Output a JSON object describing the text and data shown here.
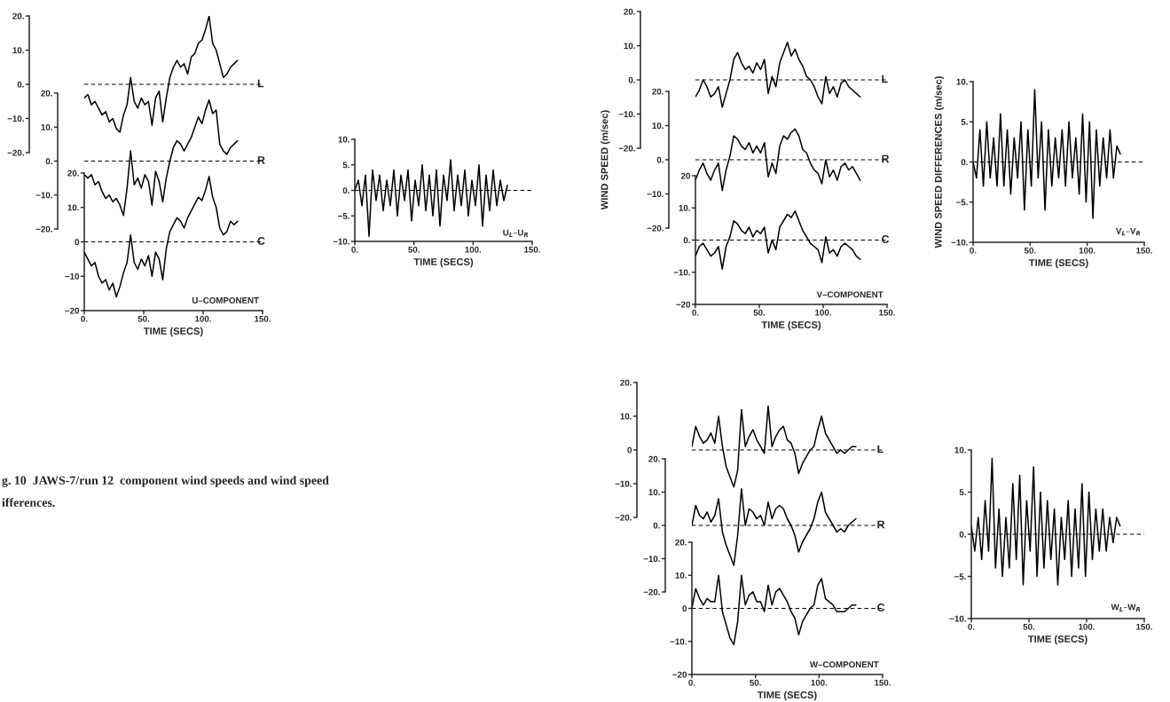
{
  "chart_data": [
    {
      "type": "line",
      "x": [
        0,
        3,
        6,
        9,
        12,
        15,
        18,
        21,
        24,
        27,
        30,
        33,
        36,
        39,
        42,
        45,
        48,
        51,
        54,
        57,
        60,
        63,
        66,
        69,
        72,
        75,
        78,
        81,
        84,
        87,
        90,
        93,
        96,
        99,
        102,
        105,
        108,
        111,
        114,
        117,
        120,
        123,
        126,
        129
      ],
      "xlim": [
        0,
        150
      ],
      "ylim": [
        -20,
        20
      ],
      "yticks": [
        {
          "value": 20,
          "label": "20."
        },
        {
          "value": 10,
          "label": "10."
        },
        {
          "value": 0,
          "label": "0."
        },
        {
          "value": -10,
          "label": "−10."
        },
        {
          "value": -20,
          "label": "−20."
        }
      ],
      "tick_labels": "y",
      "ref_lines": [
        {
          "axis": "y",
          "value": 0,
          "label": "L",
          "line_style": "dashed"
        }
      ],
      "series": [
        {
          "color": "#000000",
          "values": [
            -4,
            -3,
            -6,
            -5,
            -7,
            -9,
            -8,
            -11,
            -10,
            -13,
            -14,
            -9,
            -6,
            2,
            -5,
            -7,
            -4,
            -6,
            -5,
            -12,
            -4,
            -2,
            -11,
            -4,
            2,
            5,
            7,
            5,
            6,
            3,
            8,
            9,
            12,
            13,
            16,
            20,
            12,
            10,
            6,
            2,
            3,
            5,
            6,
            7
          ]
        }
      ]
    },
    {
      "type": "line",
      "x": [
        0,
        3,
        6,
        9,
        12,
        15,
        18,
        21,
        24,
        27,
        30,
        33,
        36,
        39,
        42,
        45,
        48,
        51,
        54,
        57,
        60,
        63,
        66,
        69,
        72,
        75,
        78,
        81,
        84,
        87,
        90,
        93,
        96,
        99,
        102,
        105,
        108,
        111,
        114,
        117,
        120,
        123,
        126,
        129
      ],
      "xlim": [
        0,
        150
      ],
      "ylim": [
        -20,
        20
      ],
      "yticks": [
        {
          "value": 20,
          "label": "20."
        },
        {
          "value": 10,
          "label": "10."
        },
        {
          "value": 0,
          "label": "0."
        },
        {
          "value": -10,
          "label": "−10."
        },
        {
          "value": -20,
          "label": "−20."
        }
      ],
      "tick_labels": "y",
      "ref_lines": [
        {
          "axis": "y",
          "value": 0,
          "label": "R",
          "line_style": "dashed"
        }
      ],
      "series": [
        {
          "color": "#000000",
          "values": [
            -4,
            -5,
            -4,
            -7,
            -6,
            -9,
            -11,
            -10,
            -12,
            -11,
            -13,
            -16,
            -8,
            3,
            -7,
            -5,
            -8,
            -4,
            -6,
            -13,
            -3,
            -6,
            -12,
            -5,
            0,
            4,
            6,
            5,
            3,
            5,
            7,
            10,
            13,
            11,
            15,
            18,
            14,
            15,
            5,
            3,
            2,
            4,
            5,
            6
          ]
        }
      ]
    },
    {
      "type": "line",
      "x": [
        0,
        3,
        6,
        9,
        12,
        15,
        18,
        21,
        24,
        27,
        30,
        33,
        36,
        39,
        42,
        45,
        48,
        51,
        54,
        57,
        60,
        63,
        66,
        69,
        72,
        75,
        78,
        81,
        84,
        87,
        90,
        93,
        96,
        99,
        102,
        105,
        108,
        111,
        114,
        117,
        120,
        123,
        126,
        129
      ],
      "xlim": [
        0,
        150
      ],
      "ylim": [
        -20,
        20
      ],
      "xticks": [
        {
          "value": 0,
          "label": "0."
        },
        {
          "value": 50,
          "label": "50."
        },
        {
          "value": 100,
          "label": "100."
        },
        {
          "value": 150,
          "label": "150."
        }
      ],
      "yticks": [
        {
          "value": 20,
          "label": "20."
        },
        {
          "value": 10,
          "label": "10."
        },
        {
          "value": 0,
          "label": "0"
        },
        {
          "value": -10,
          "label": "−10"
        },
        {
          "value": -20,
          "label": "−20"
        }
      ],
      "xlabel": "TIME (SECS)",
      "annotations": [
        "U–COMPONENT"
      ],
      "ref_lines": [
        {
          "axis": "y",
          "value": 0,
          "label": "C",
          "line_style": "dashed"
        }
      ],
      "series": [
        {
          "color": "#000000",
          "values": [
            -3,
            -5,
            -7,
            -6,
            -10,
            -12,
            -11,
            -14,
            -12,
            -16,
            -13,
            -9,
            -6,
            2,
            -6,
            -8,
            -5,
            -7,
            -4,
            -10,
            -3,
            -5,
            -11,
            -2,
            3,
            5,
            7,
            6,
            4,
            7,
            9,
            11,
            13,
            12,
            15,
            19,
            13,
            10,
            4,
            2,
            3,
            6,
            5,
            6
          ]
        }
      ]
    },
    {
      "type": "line",
      "x": [
        0,
        3,
        6,
        9,
        12,
        15,
        18,
        21,
        24,
        27,
        30,
        33,
        36,
        39,
        42,
        45,
        48,
        51,
        54,
        57,
        60,
        63,
        66,
        69,
        72,
        75,
        78,
        81,
        84,
        87,
        90,
        93,
        96,
        99,
        102,
        105,
        108,
        111,
        114,
        117,
        120,
        123,
        126,
        129
      ],
      "xlim": [
        0,
        150
      ],
      "ylim": [
        -10,
        10
      ],
      "xticks": [
        {
          "value": 0,
          "label": "0."
        },
        {
          "value": 50,
          "label": "50."
        },
        {
          "value": 100,
          "label": "100."
        },
        {
          "value": 150,
          "label": "150."
        }
      ],
      "yticks": [
        {
          "value": 10,
          "label": "10."
        },
        {
          "value": 5,
          "label": "5."
        },
        {
          "value": 0,
          "label": "0."
        },
        {
          "value": -5,
          "label": "−5."
        },
        {
          "value": -10,
          "label": "−10."
        }
      ],
      "xlabel": "TIME (SECS)",
      "annotations": [
        "U$_{L}$–U$_{R}$"
      ],
      "ref_lines": [
        {
          "axis": "y",
          "value": 0,
          "line_style": "dashed"
        }
      ],
      "series": [
        {
          "color": "#000000",
          "values": [
            0,
            2,
            -3,
            3,
            -9,
            4,
            -2,
            3,
            -4,
            2,
            -3,
            4,
            -5,
            3,
            -2,
            4,
            -6,
            2,
            -3,
            5,
            -4,
            3,
            -5,
            4,
            -7,
            3,
            -2,
            6,
            -4,
            3,
            -3,
            4,
            -5,
            2,
            -3,
            5,
            -7,
            3,
            -4,
            4,
            -3,
            2,
            -2,
            1
          ]
        }
      ]
    },
    {
      "type": "line",
      "x": [
        0,
        3,
        6,
        9,
        12,
        15,
        18,
        21,
        24,
        27,
        30,
        33,
        36,
        39,
        42,
        45,
        48,
        51,
        54,
        57,
        60,
        63,
        66,
        69,
        72,
        75,
        78,
        81,
        84,
        87,
        90,
        93,
        96,
        99,
        102,
        105,
        108,
        111,
        114,
        117,
        120,
        123,
        126,
        129
      ],
      "xlim": [
        0,
        150
      ],
      "ylim": [
        -20,
        20
      ],
      "yticks": [
        {
          "value": 20,
          "label": "20."
        },
        {
          "value": 10,
          "label": "10."
        },
        {
          "value": 0,
          "label": "0."
        },
        {
          "value": -10,
          "label": "−10."
        },
        {
          "value": -20,
          "label": "−20."
        }
      ],
      "tick_labels": "y",
      "ref_lines": [
        {
          "axis": "y",
          "value": 0,
          "label": "L",
          "line_style": "dashed"
        }
      ],
      "series": [
        {
          "color": "#000000",
          "values": [
            -5,
            -3,
            0,
            -2,
            -5,
            -4,
            -2,
            -8,
            -4,
            0,
            6,
            8,
            5,
            3,
            4,
            2,
            5,
            3,
            6,
            -4,
            1,
            -2,
            5,
            8,
            11,
            7,
            9,
            6,
            4,
            1,
            0,
            -2,
            -5,
            -7,
            1,
            -4,
            -2,
            -5,
            -1,
            0,
            -2,
            -3,
            -4,
            -5
          ]
        }
      ]
    },
    {
      "type": "line",
      "x": [
        0,
        3,
        6,
        9,
        12,
        15,
        18,
        21,
        24,
        27,
        30,
        33,
        36,
        39,
        42,
        45,
        48,
        51,
        54,
        57,
        60,
        63,
        66,
        69,
        72,
        75,
        78,
        81,
        84,
        87,
        90,
        93,
        96,
        99,
        102,
        105,
        108,
        111,
        114,
        117,
        120,
        123,
        126,
        129
      ],
      "xlim": [
        0,
        150
      ],
      "ylim": [
        -20,
        20
      ],
      "yticks": [
        {
          "value": 20,
          "label": "20."
        },
        {
          "value": 10,
          "label": "10."
        },
        {
          "value": 0,
          "label": "0."
        },
        {
          "value": -10,
          "label": "−10."
        },
        {
          "value": -20,
          "label": "−20."
        }
      ],
      "tick_labels": "y",
      "ylabel": "WIND SPEED (m/sec)",
      "ref_lines": [
        {
          "axis": "y",
          "value": 0,
          "label": "R",
          "line_style": "dashed"
        }
      ],
      "series": [
        {
          "color": "#000000",
          "values": [
            -6,
            -3,
            -1,
            -4,
            -6,
            -3,
            -1,
            -9,
            -3,
            1,
            7,
            6,
            4,
            3,
            5,
            2,
            4,
            2,
            5,
            -5,
            -1,
            -4,
            4,
            7,
            6,
            8,
            9,
            7,
            3,
            2,
            -1,
            -3,
            -4,
            -7,
            0,
            -5,
            -3,
            -6,
            -2,
            -1,
            -3,
            -2,
            -4,
            -6
          ]
        }
      ]
    },
    {
      "type": "line",
      "x": [
        0,
        3,
        6,
        9,
        12,
        15,
        18,
        21,
        24,
        27,
        30,
        33,
        36,
        39,
        42,
        45,
        48,
        51,
        54,
        57,
        60,
        63,
        66,
        69,
        72,
        75,
        78,
        81,
        84,
        87,
        90,
        93,
        96,
        99,
        102,
        105,
        108,
        111,
        114,
        117,
        120,
        123,
        126,
        129
      ],
      "xlim": [
        0,
        150
      ],
      "ylim": [
        -20,
        20
      ],
      "xticks": [
        {
          "value": 0,
          "label": "0."
        },
        {
          "value": 50,
          "label": "50."
        },
        {
          "value": 100,
          "label": "100."
        },
        {
          "value": 150,
          "label": "150."
        }
      ],
      "yticks": [
        {
          "value": 20,
          "label": "20"
        },
        {
          "value": 10,
          "label": "10."
        },
        {
          "value": 0,
          "label": "0."
        },
        {
          "value": -10,
          "label": "−10."
        },
        {
          "value": -20,
          "label": "−20"
        }
      ],
      "xlabel": "TIME (SECS)",
      "annotations": [
        "V–COMPONENT"
      ],
      "ref_lines": [
        {
          "axis": "y",
          "value": 0,
          "label": "C",
          "line_style": "dashed"
        }
      ],
      "series": [
        {
          "color": "#000000",
          "values": [
            -5,
            -2,
            -1,
            -3,
            -5,
            -4,
            -2,
            -9,
            -2,
            1,
            6,
            5,
            3,
            2,
            4,
            1,
            3,
            2,
            4,
            -4,
            0,
            -3,
            4,
            6,
            8,
            7,
            9,
            6,
            3,
            1,
            -1,
            -2,
            -3,
            -7,
            1,
            -4,
            -3,
            -5,
            -2,
            -1,
            -2,
            -3,
            -5,
            -6
          ]
        }
      ]
    },
    {
      "type": "line",
      "x": [
        0,
        3,
        6,
        9,
        12,
        15,
        18,
        21,
        24,
        27,
        30,
        33,
        36,
        39,
        42,
        45,
        48,
        51,
        54,
        57,
        60,
        63,
        66,
        69,
        72,
        75,
        78,
        81,
        84,
        87,
        90,
        93,
        96,
        99,
        102,
        105,
        108,
        111,
        114,
        117,
        120,
        123,
        126,
        129
      ],
      "xlim": [
        0,
        150
      ],
      "ylim": [
        -10,
        10
      ],
      "xticks": [
        {
          "value": 0,
          "label": "0."
        },
        {
          "value": 50,
          "label": "50."
        },
        {
          "value": 100,
          "label": "100."
        },
        {
          "value": 150,
          "label": "150."
        }
      ],
      "yticks": [
        {
          "value": 10,
          "label": "10."
        },
        {
          "value": 5,
          "label": "5."
        },
        {
          "value": 0,
          "label": "0."
        },
        {
          "value": -5,
          "label": "−5."
        },
        {
          "value": -10,
          "label": "−10."
        }
      ],
      "xlabel": "TIME (SECS)",
      "ylabel": "WIND SPEED DIFFERENCES (m/sec)",
      "annotations": [
        "V$_{L}$–V$_{R}$"
      ],
      "ref_lines": [
        {
          "axis": "y",
          "value": 0,
          "line_style": "dashed"
        }
      ],
      "series": [
        {
          "color": "#000000",
          "values": [
            0,
            -2,
            4,
            -3,
            5,
            -2,
            3,
            -3,
            6,
            -3,
            4,
            -4,
            3,
            -2,
            5,
            -6,
            4,
            -3,
            9,
            -2,
            5,
            -6,
            4,
            -3,
            3,
            -2,
            4,
            -3,
            5,
            -2,
            3,
            -4,
            6,
            -5,
            5,
            -7,
            4,
            -3,
            3,
            -2,
            4,
            -2,
            2,
            1
          ]
        }
      ]
    },
    {
      "type": "line",
      "x": [
        0,
        3,
        6,
        9,
        12,
        15,
        18,
        21,
        24,
        27,
        30,
        33,
        36,
        39,
        42,
        45,
        48,
        51,
        54,
        57,
        60,
        63,
        66,
        69,
        72,
        75,
        78,
        81,
        84,
        87,
        90,
        93,
        96,
        99,
        102,
        105,
        108,
        111,
        114,
        117,
        120,
        123,
        126,
        129
      ],
      "xlim": [
        0,
        150
      ],
      "ylim": [
        -20,
        20
      ],
      "yticks": [
        {
          "value": 20,
          "label": "20."
        },
        {
          "value": 10,
          "label": "10."
        },
        {
          "value": 0,
          "label": "0"
        },
        {
          "value": -10,
          "label": "−10."
        },
        {
          "value": -20,
          "label": "−20."
        }
      ],
      "tick_labels": "y",
      "ref_lines": [
        {
          "axis": "y",
          "value": 0,
          "label": "L",
          "line_style": "dashed"
        }
      ],
      "series": [
        {
          "color": "#000000",
          "values": [
            1,
            7,
            4,
            2,
            3,
            5,
            2,
            10,
            1,
            -5,
            -8,
            -11,
            -6,
            12,
            1,
            4,
            6,
            3,
            1,
            -1,
            13,
            1,
            4,
            6,
            7,
            3,
            2,
            -1,
            -7,
            -4,
            -2,
            0,
            1,
            6,
            10,
            5,
            3,
            1,
            -1,
            0,
            -1,
            0,
            1,
            1
          ]
        }
      ]
    },
    {
      "type": "line",
      "x": [
        0,
        3,
        6,
        9,
        12,
        15,
        18,
        21,
        24,
        27,
        30,
        33,
        36,
        39,
        42,
        45,
        48,
        51,
        54,
        57,
        60,
        63,
        66,
        69,
        72,
        75,
        78,
        81,
        84,
        87,
        90,
        93,
        96,
        99,
        102,
        105,
        108,
        111,
        114,
        117,
        120,
        123,
        126,
        129
      ],
      "xlim": [
        0,
        150
      ],
      "ylim": [
        -20,
        20
      ],
      "yticks": [
        {
          "value": 20,
          "label": "20."
        },
        {
          "value": 10,
          "label": "10."
        },
        {
          "value": 0,
          "label": "0."
        },
        {
          "value": -10,
          "label": "−10."
        },
        {
          "value": -20,
          "label": "−20."
        }
      ],
      "tick_labels": "y",
      "ref_lines": [
        {
          "axis": "y",
          "value": 0,
          "label": "R",
          "line_style": "dashed"
        }
      ],
      "series": [
        {
          "color": "#000000",
          "values": [
            0,
            6,
            3,
            2,
            4,
            1,
            3,
            8,
            -2,
            -6,
            -9,
            -12,
            -3,
            11,
            0,
            5,
            4,
            2,
            3,
            0,
            7,
            2,
            5,
            6,
            5,
            2,
            0,
            -3,
            -8,
            -5,
            -3,
            -1,
            2,
            7,
            10,
            4,
            2,
            0,
            -2,
            -1,
            -2,
            0,
            1,
            2
          ]
        }
      ]
    },
    {
      "type": "line",
      "x": [
        0,
        3,
        6,
        9,
        12,
        15,
        18,
        21,
        24,
        27,
        30,
        33,
        36,
        39,
        42,
        45,
        48,
        51,
        54,
        57,
        60,
        63,
        66,
        69,
        72,
        75,
        78,
        81,
        84,
        87,
        90,
        93,
        96,
        99,
        102,
        105,
        108,
        111,
        114,
        117,
        120,
        123,
        126,
        129
      ],
      "xlim": [
        0,
        150
      ],
      "ylim": [
        -20,
        20
      ],
      "xticks": [
        {
          "value": 0,
          "label": "0."
        },
        {
          "value": 50,
          "label": "50."
        },
        {
          "value": 100,
          "label": "100."
        },
        {
          "value": 150,
          "label": "150."
        }
      ],
      "yticks": [
        {
          "value": 20,
          "label": "20."
        },
        {
          "value": 10,
          "label": "10."
        },
        {
          "value": 0,
          "label": "0"
        },
        {
          "value": -10,
          "label": "−10."
        },
        {
          "value": -20,
          "label": "−20"
        }
      ],
      "xlabel": "TIME (SECS)",
      "annotations": [
        "W–COMPONENT"
      ],
      "ref_lines": [
        {
          "axis": "y",
          "value": 0,
          "label": "C",
          "line_style": "dashed"
        }
      ],
      "series": [
        {
          "color": "#000000",
          "values": [
            0,
            6,
            3,
            1,
            3,
            2,
            2,
            10,
            -1,
            -5,
            -9,
            -11,
            -4,
            10,
            1,
            4,
            5,
            2,
            2,
            -1,
            7,
            1,
            5,
            6,
            4,
            2,
            -1,
            -3,
            -8,
            -4,
            -2,
            0,
            1,
            7,
            9,
            3,
            2,
            1,
            -1,
            -1,
            -1,
            0,
            1,
            1
          ]
        }
      ]
    },
    {
      "type": "line",
      "x": [
        0,
        3,
        6,
        9,
        12,
        15,
        18,
        21,
        24,
        27,
        30,
        33,
        36,
        39,
        42,
        45,
        48,
        51,
        54,
        57,
        60,
        63,
        66,
        69,
        72,
        75,
        78,
        81,
        84,
        87,
        90,
        93,
        96,
        99,
        102,
        105,
        108,
        111,
        114,
        117,
        120,
        123,
        126,
        129
      ],
      "xlim": [
        0,
        150
      ],
      "ylim": [
        -10,
        10
      ],
      "xticks": [
        {
          "value": 0,
          "label": "0."
        },
        {
          "value": 50,
          "label": "50."
        },
        {
          "value": 100,
          "label": "100."
        },
        {
          "value": 150,
          "label": "150."
        }
      ],
      "yticks": [
        {
          "value": 10,
          "label": "10."
        },
        {
          "value": 5,
          "label": "5."
        },
        {
          "value": 0,
          "label": "0."
        },
        {
          "value": -5,
          "label": "−5."
        },
        {
          "value": -10,
          "label": "−10."
        }
      ],
      "xlabel": "TIME (SECS)",
      "annotations": [
        "W$_{L}$–W$_{R}$"
      ],
      "ref_lines": [
        {
          "axis": "y",
          "value": 0,
          "line_style": "dashed"
        }
      ],
      "series": [
        {
          "color": "#000000",
          "values": [
            1,
            -2,
            2,
            -3,
            4,
            -2,
            9,
            -4,
            3,
            -5,
            2,
            -4,
            6,
            -3,
            7,
            -6,
            4,
            -2,
            8,
            -5,
            5,
            -4,
            4,
            -3,
            3,
            -6,
            2,
            -3,
            4,
            -5,
            3,
            -4,
            6,
            -5,
            5,
            -3,
            3,
            -2,
            3,
            -2,
            2,
            -1,
            2,
            1
          ]
        }
      ]
    },
    {
      "type": "other",
      "annotations": [
        "g. 10  JAWS-7/run 12  component wind speeds and wind speed",
        "ifferences."
      ]
    }
  ]
}
